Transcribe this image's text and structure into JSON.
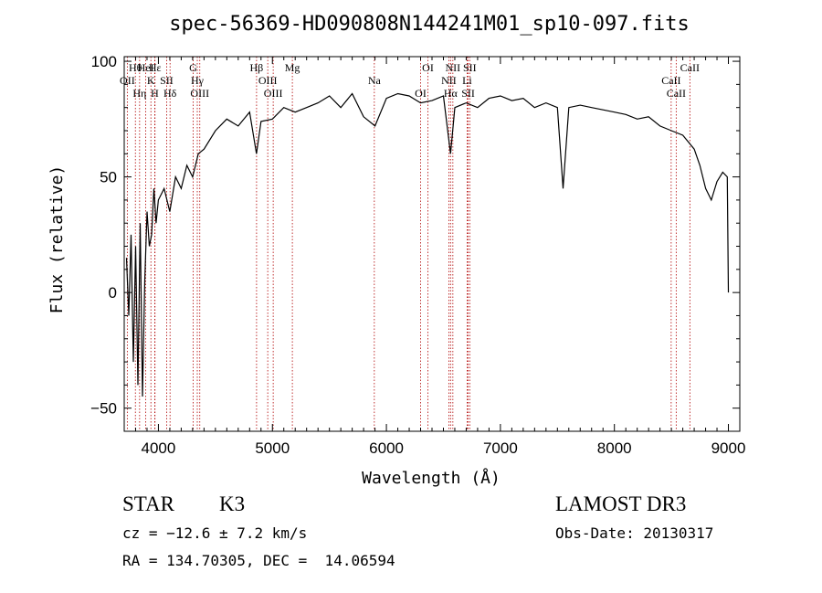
{
  "chart_data": {
    "type": "line",
    "title": "spec-56369-HD090808N144241M01_sp10-097.fits",
    "xlabel": "Wavelength (Å)",
    "ylabel": "Flux (relative)",
    "xlim": [
      3700,
      9100
    ],
    "ylim": [
      -60,
      102
    ],
    "xticks": [
      4000,
      5000,
      6000,
      7000,
      8000,
      9000
    ],
    "yticks": [
      -50,
      0,
      50,
      100
    ],
    "grid": false,
    "line_color": "#000000",
    "marker_color": "#b00000",
    "series": [
      {
        "x": [
          3720,
          3740,
          3760,
          3780,
          3800,
          3820,
          3840,
          3860,
          3880,
          3900,
          3920,
          3940,
          3960,
          3980,
          4000,
          4050,
          4100,
          4150,
          4200,
          4250,
          4300,
          4350,
          4400,
          4500,
          4600,
          4700,
          4800,
          4860,
          4900,
          5000,
          5100,
          5200,
          5300,
          5400,
          5500,
          5600,
          5700,
          5800,
          5900,
          6000,
          6100,
          6200,
          6300,
          6400,
          6500,
          6563,
          6600,
          6700,
          6800,
          6900,
          7000,
          7100,
          7200,
          7300,
          7400,
          7500,
          7550,
          7600,
          7700,
          7800,
          7900,
          8000,
          8100,
          8200,
          8300,
          8400,
          8500,
          8600,
          8700,
          8750,
          8800,
          8850,
          8900,
          8950,
          8990,
          9000
        ],
        "y": [
          15,
          -10,
          25,
          -30,
          20,
          -40,
          30,
          -45,
          5,
          35,
          20,
          25,
          45,
          30,
          40,
          45,
          35,
          50,
          45,
          55,
          50,
          60,
          62,
          70,
          75,
          72,
          78,
          60,
          74,
          75,
          80,
          78,
          80,
          82,
          85,
          80,
          86,
          76,
          72,
          84,
          86,
          85,
          82,
          83,
          85,
          60,
          80,
          82,
          80,
          84,
          85,
          83,
          84,
          80,
          82,
          80,
          45,
          80,
          81,
          80,
          79,
          78,
          77,
          75,
          76,
          72,
          70,
          68,
          62,
          55,
          45,
          40,
          48,
          52,
          50,
          0
        ]
      }
    ],
    "lines": [
      {
        "name": "Hθ",
        "x": 3798
      },
      {
        "name": "OII",
        "x": 3727
      },
      {
        "name": "Hη",
        "x": 3835
      },
      {
        "name": "HeI",
        "x": 3889
      },
      {
        "name": "K",
        "x": 3934
      },
      {
        "name": "H",
        "x": 3968
      },
      {
        "name": "Hε",
        "x": 3970
      },
      {
        "name": "SII",
        "x": 4072
      },
      {
        "name": "Hδ",
        "x": 4102
      },
      {
        "name": "G",
        "x": 4305
      },
      {
        "name": "Hγ",
        "x": 4341
      },
      {
        "name": "OIII",
        "x": 4363
      },
      {
        "name": "Hβ",
        "x": 4861
      },
      {
        "name": "OIII",
        "x": 4959
      },
      {
        "name": "OIII",
        "x": 5007
      },
      {
        "name": "Mg",
        "x": 5175
      },
      {
        "name": "Na",
        "x": 5894
      },
      {
        "name": "OI",
        "x": 6300
      },
      {
        "name": "OI",
        "x": 6364
      },
      {
        "name": "NII",
        "x": 6548
      },
      {
        "name": "Hα",
        "x": 6563
      },
      {
        "name": "NII",
        "x": 6583
      },
      {
        "name": "Li",
        "x": 6708
      },
      {
        "name": "SII",
        "x": 6717
      },
      {
        "name": "SII",
        "x": 6731
      },
      {
        "name": "CaII",
        "x": 8498
      },
      {
        "name": "CaII",
        "x": 8542
      },
      {
        "name": "CaII",
        "x": 8662
      }
    ]
  },
  "info": {
    "object_class": "STAR",
    "subclass": "K3",
    "survey": "LAMOST DR3",
    "redshift": "cz = −12.6 ± 7.2 km/s",
    "obs_date": "Obs-Date: 20130317",
    "coords": "RA = 134.70305, DEC =  14.06594"
  }
}
